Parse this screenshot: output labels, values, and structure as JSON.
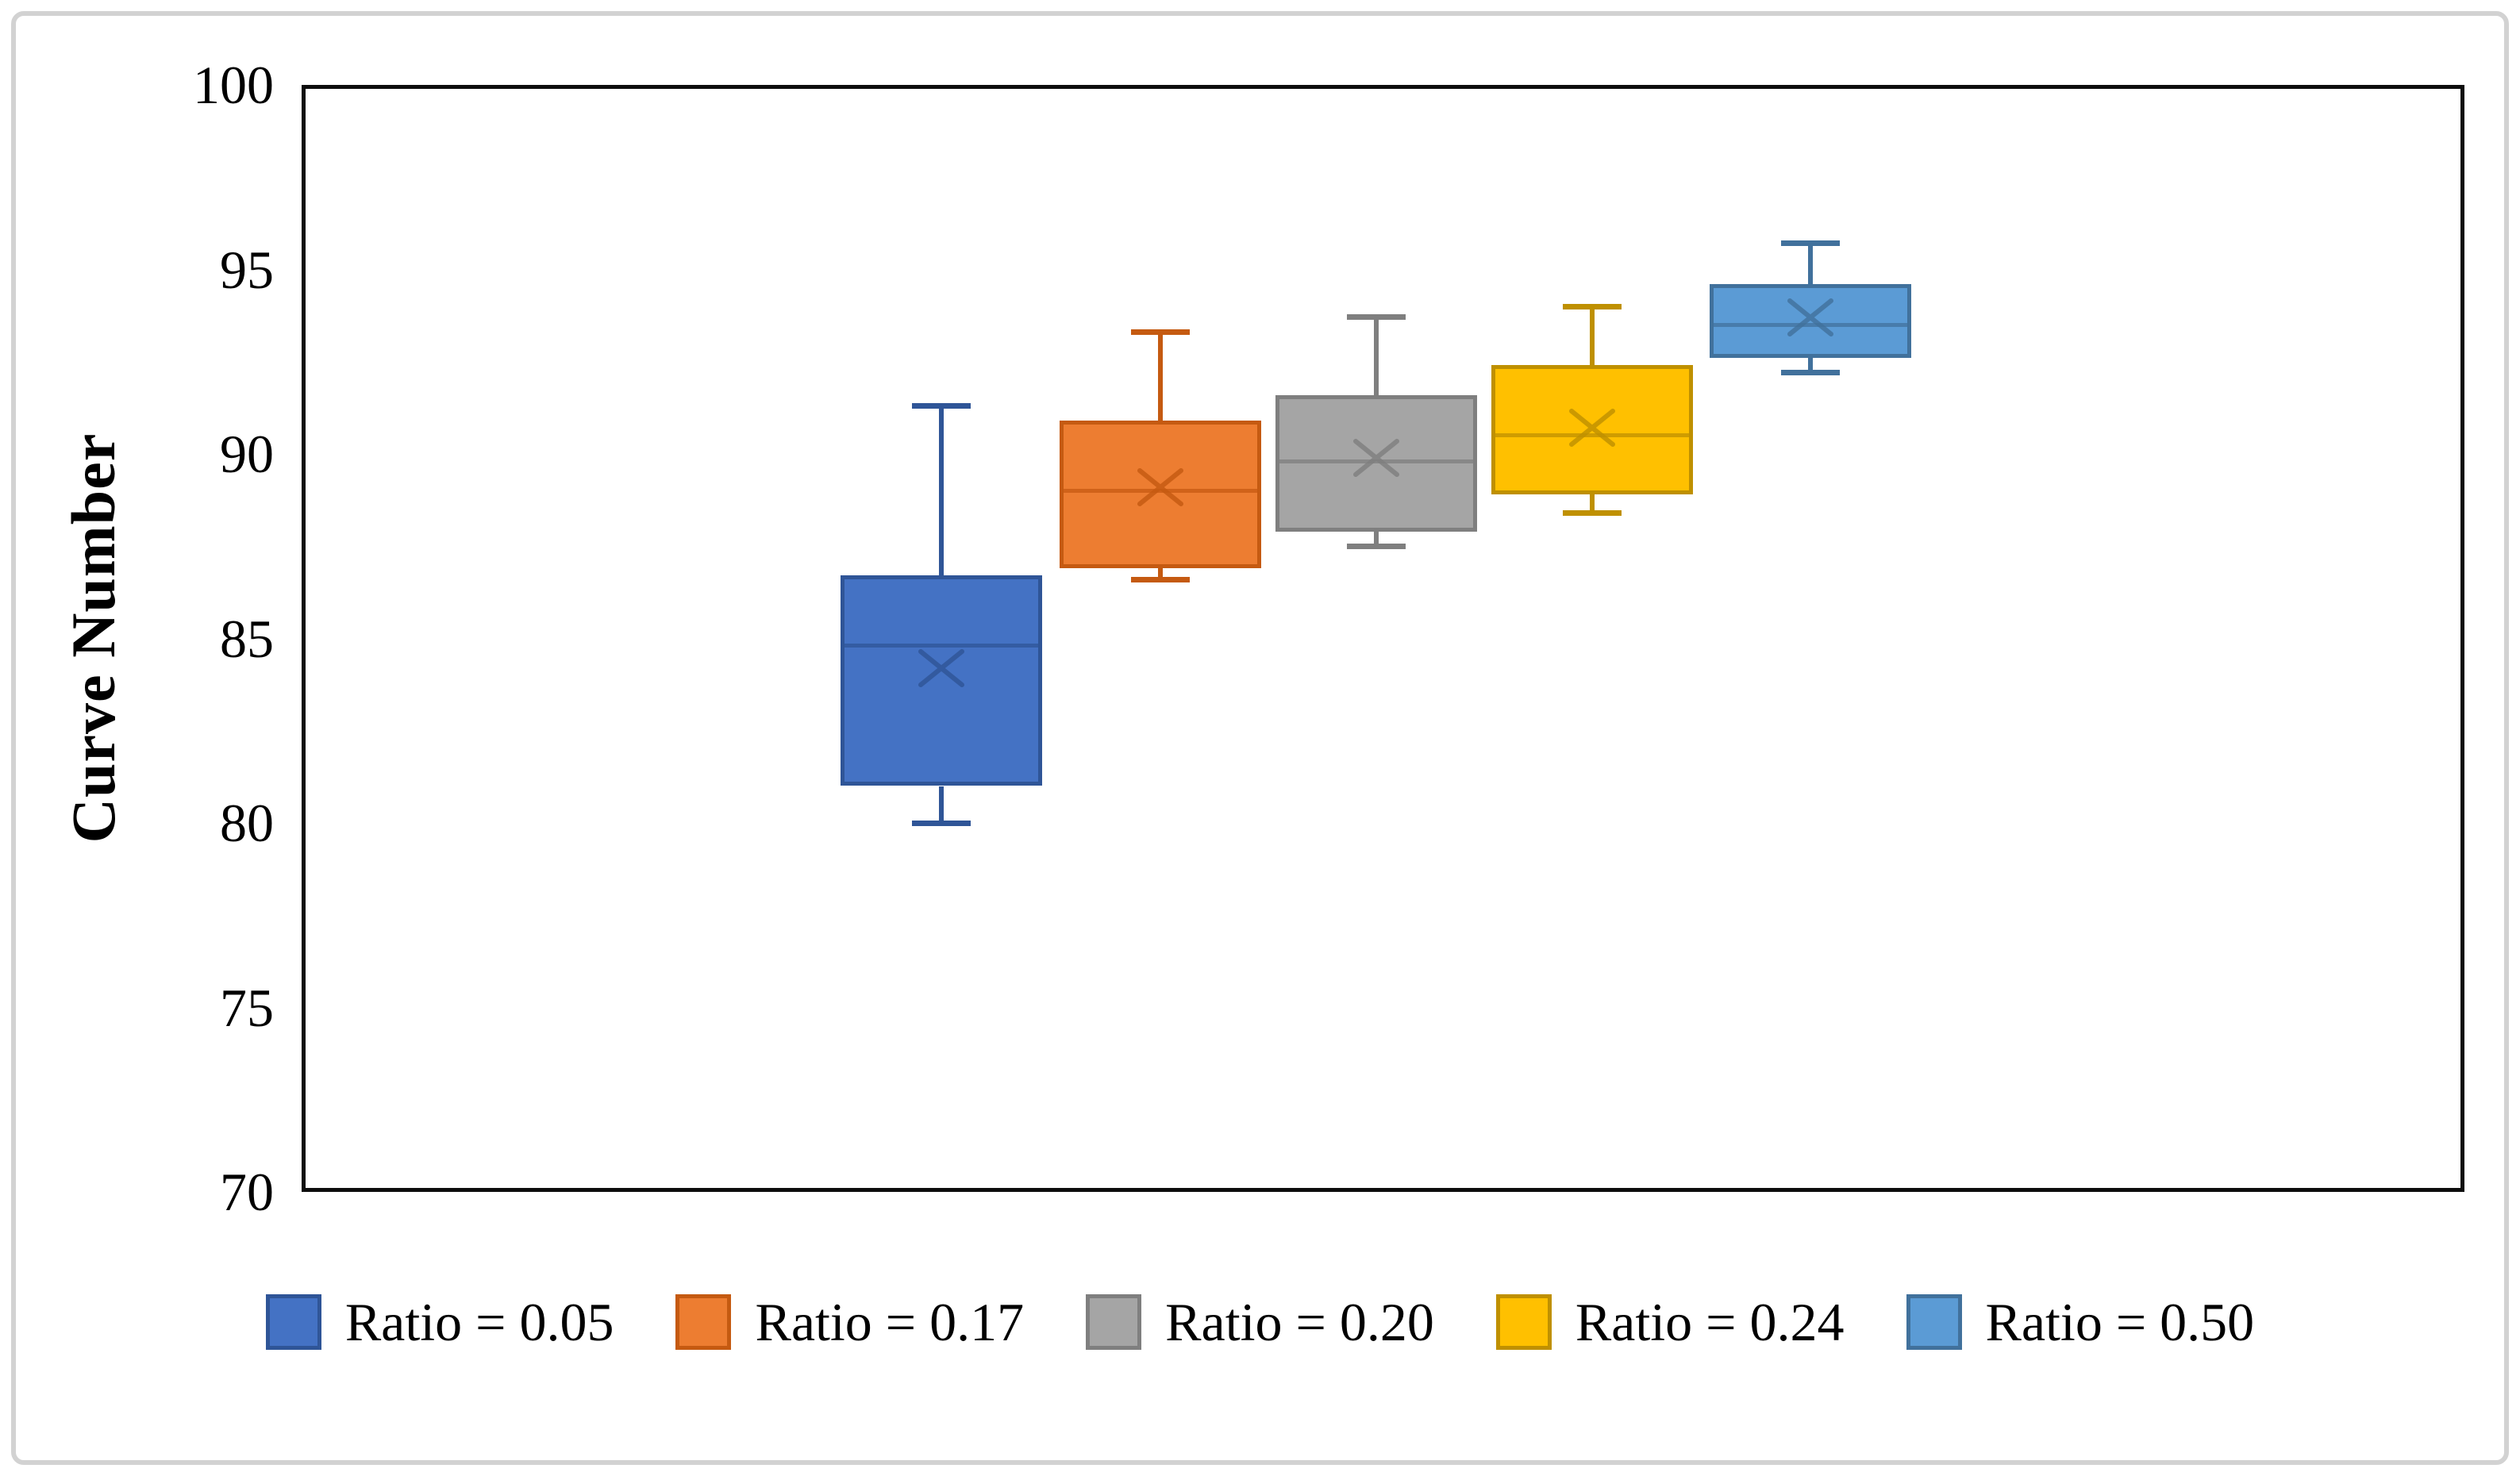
{
  "figure": {
    "y_axis": {
      "title": "Curve Number",
      "tick_labels": [
        "100",
        "95",
        "90",
        "85",
        "80",
        "75",
        "70"
      ]
    },
    "legend_labels": [
      "Ratio = 0.05",
      "Ratio = 0.17",
      "Ratio = 0.20",
      "Ratio = 0.24",
      "Ratio = 0.50"
    ]
  },
  "chart_data": {
    "type": "box",
    "title": "",
    "xlabel": "",
    "ylabel": "Curve Number",
    "ylim": [
      70,
      100
    ],
    "y_tick_step": 5,
    "grid": false,
    "legend_position": "bottom",
    "series": [
      {
        "name": "Ratio = 0.05",
        "fill": "#4472C4",
        "border": "#2F5597",
        "min": 80.0,
        "q1": 81.0,
        "median": 84.8,
        "mean": 84.2,
        "q3": 86.7,
        "max": 91.3
      },
      {
        "name": "Ratio = 0.17",
        "fill": "#ED7D31",
        "border": "#C55A11",
        "min": 86.6,
        "q1": 86.9,
        "median": 89.0,
        "mean": 89.1,
        "q3": 90.9,
        "max": 93.3
      },
      {
        "name": "Ratio = 0.20",
        "fill": "#A5A5A5",
        "border": "#7F7F7F",
        "min": 87.5,
        "q1": 87.9,
        "median": 89.8,
        "mean": 89.9,
        "q3": 91.6,
        "max": 93.7
      },
      {
        "name": "Ratio = 0.24",
        "fill": "#FFC000",
        "border": "#BF9000",
        "min": 88.4,
        "q1": 88.9,
        "median": 90.5,
        "mean": 90.7,
        "q3": 92.4,
        "max": 94.0
      },
      {
        "name": "Ratio = 0.50",
        "fill": "#5B9BD5",
        "border": "#41719C",
        "min": 92.2,
        "q1": 92.6,
        "median": 93.5,
        "mean": 93.7,
        "q3": 94.6,
        "max": 95.7
      }
    ]
  }
}
